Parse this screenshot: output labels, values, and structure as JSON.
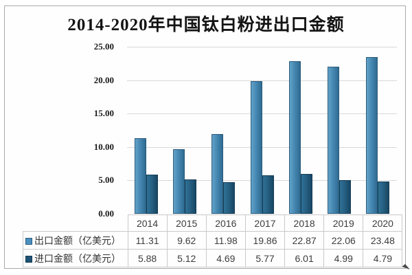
{
  "chart_data": {
    "type": "bar",
    "title": "2014-2020年中国钛白粉进出口金额",
    "categories": [
      "2014",
      "2015",
      "2016",
      "2017",
      "2018",
      "2019",
      "2020"
    ],
    "series": [
      {
        "name": "出口金额（亿美元）",
        "values": [
          11.31,
          9.62,
          11.98,
          19.86,
          22.87,
          22.06,
          23.48
        ],
        "bar_color_light": "#63a2c8",
        "bar_color_dark": "#2f6b92",
        "legend_swatch_color": "#4a8fc0",
        "legend_swatch_border": "#2c5c7d"
      },
      {
        "name": "进口金额（亿美元）",
        "values": [
          5.88,
          5.12,
          4.69,
          5.77,
          6.01,
          4.99,
          4.79
        ],
        "bar_color_light": "#2f7296",
        "bar_color_dark": "#174663",
        "legend_swatch_color": "#1f5376",
        "legend_swatch_border": "#123c55"
      }
    ],
    "xlabel": "",
    "ylabel": "",
    "ylim": [
      0,
      25
    ],
    "ytick_interval": 5,
    "ytick_labels": [
      "0.00",
      "5.00",
      "10.00",
      "15.00",
      "20.00",
      "25.00"
    ],
    "value_decimals": 2,
    "grid": true,
    "legend_position": "table-left",
    "table_shown": true
  },
  "icons": {
    "corner_cursor": "arrow-cursor"
  }
}
